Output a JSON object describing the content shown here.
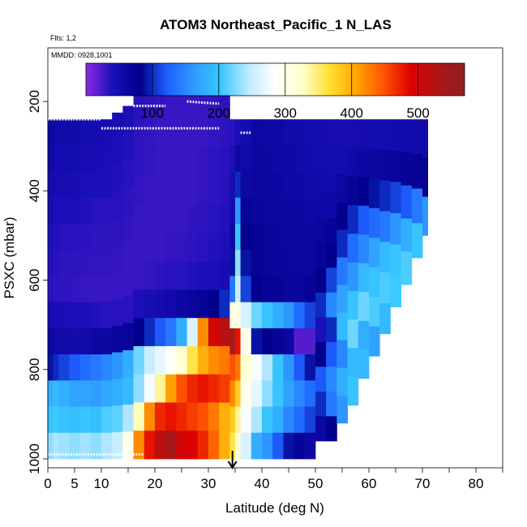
{
  "chart_data": {
    "type": "heatmap",
    "title": "ATOM3 Northeast_Pacific_1 N_LAS",
    "flights_note": "Flts: 1,2",
    "dates_note": "MMDD: 0928,1001",
    "xlabel": "Latitude (deg N)",
    "ylabel": "PSXC (mbar)",
    "x_ticks": [
      0,
      5,
      10,
      20,
      30,
      40,
      50,
      60,
      70,
      80
    ],
    "y_ticks": [
      200,
      400,
      600,
      800,
      1000
    ],
    "xlim": [
      0,
      85
    ],
    "ylim": [
      1020,
      80
    ],
    "colorbar": {
      "ticks": [
        100,
        200,
        300,
        400,
        500
      ],
      "range": [
        0,
        570
      ],
      "colors": [
        "#8a2be2",
        "#1a0fb8",
        "#00008b",
        "#1f5fff",
        "#2e9bff",
        "#38c8ff",
        "#bfeaff",
        "#ffffff",
        "#ffffcc",
        "#ffe033",
        "#ffa500",
        "#ff5500",
        "#e00000",
        "#b01515",
        "#8c2020"
      ]
    },
    "marker": {
      "latitude": 34.5,
      "label": "arrow"
    },
    "columns": [
      {
        "lat": [
          0,
          1
        ],
        "top": 240,
        "bottom": 1000,
        "v": [
          60,
          55,
          50,
          45,
          40,
          38,
          35,
          45,
          60,
          90,
          180,
          200,
          230
        ]
      },
      {
        "lat": [
          1,
          2
        ],
        "top": 240,
        "bottom": 1000,
        "v": [
          58,
          52,
          48,
          42,
          38,
          36,
          34,
          44,
          58,
          100,
          190,
          205,
          240
        ]
      },
      {
        "lat": [
          2,
          4
        ],
        "top": 240,
        "bottom": 1000,
        "v": [
          55,
          50,
          45,
          40,
          36,
          34,
          33,
          42,
          55,
          110,
          180,
          200,
          235
        ]
      },
      {
        "lat": [
          4,
          6
        ],
        "top": 240,
        "bottom": 1000,
        "v": [
          52,
          48,
          44,
          40,
          36,
          34,
          32,
          40,
          52,
          120,
          170,
          195,
          230
        ]
      },
      {
        "lat": [
          6,
          8
        ],
        "top": 240,
        "bottom": 1000,
        "v": [
          50,
          46,
          42,
          38,
          35,
          33,
          31,
          40,
          55,
          130,
          170,
          200,
          235
        ]
      },
      {
        "lat": [
          8,
          10
        ],
        "top": 240,
        "bottom": 1000,
        "v": [
          48,
          44,
          40,
          36,
          34,
          32,
          30,
          38,
          60,
          140,
          165,
          195,
          230
        ]
      },
      {
        "lat": [
          10,
          12
        ],
        "top": 240,
        "bottom": 1000,
        "v": [
          46,
          42,
          40,
          36,
          34,
          32,
          30,
          36,
          60,
          150,
          175,
          210,
          240
        ]
      },
      {
        "lat": [
          12,
          14
        ],
        "top": 225,
        "bottom": 1000,
        "v": [
          44,
          40,
          38,
          36,
          34,
          32,
          30,
          35,
          65,
          160,
          180,
          215,
          250
        ]
      },
      {
        "lat": [
          14,
          16
        ],
        "top": 210,
        "bottom": 1000,
        "v": [
          40,
          38,
          36,
          34,
          32,
          30,
          30,
          35,
          70,
          180,
          190,
          240,
          300
        ]
      },
      {
        "lat": [
          16,
          18
        ],
        "top": 180,
        "bottom": 1000,
        "v": [
          36,
          34,
          34,
          32,
          30,
          30,
          30,
          40,
          80,
          220,
          230,
          330,
          420
        ]
      },
      {
        "lat": [
          18,
          20
        ],
        "top": 180,
        "bottom": 1000,
        "v": [
          34,
          32,
          32,
          30,
          30,
          30,
          32,
          45,
          100,
          250,
          280,
          420,
          480
        ]
      },
      {
        "lat": [
          20,
          22
        ],
        "top": 180,
        "bottom": 1000,
        "v": [
          32,
          30,
          30,
          30,
          30,
          30,
          34,
          50,
          120,
          270,
          340,
          470,
          520
        ]
      },
      {
        "lat": [
          22,
          24
        ],
        "top": 180,
        "bottom": 1000,
        "v": [
          30,
          30,
          30,
          30,
          30,
          32,
          36,
          55,
          140,
          290,
          410,
          480,
          540
        ]
      },
      {
        "lat": [
          24,
          26
        ],
        "top": 180,
        "bottom": 1000,
        "v": [
          30,
          30,
          30,
          30,
          30,
          32,
          36,
          60,
          180,
          320,
          450,
          470,
          500
        ]
      },
      {
        "lat": [
          26,
          28
        ],
        "top": 180,
        "bottom": 1000,
        "v": [
          30,
          30,
          30,
          30,
          32,
          34,
          38,
          65,
          260,
          360,
          470,
          460,
          490
        ]
      },
      {
        "lat": [
          28,
          30
        ],
        "top": 180,
        "bottom": 1000,
        "v": [
          30,
          30,
          32,
          32,
          34,
          36,
          40,
          70,
          420,
          400,
          480,
          450,
          470
        ]
      },
      {
        "lat": [
          30,
          32
        ],
        "top": 180,
        "bottom": 1000,
        "v": [
          32,
          32,
          34,
          34,
          36,
          38,
          42,
          80,
          500,
          420,
          470,
          430,
          440
        ]
      },
      {
        "lat": [
          32,
          34
        ],
        "top": 180,
        "bottom": 1000,
        "v": [
          34,
          34,
          36,
          36,
          38,
          40,
          45,
          100,
          520,
          430,
          460,
          400,
          400
        ]
      },
      {
        "lat": [
          34,
          35
        ],
        "top": 240,
        "bottom": 1000,
        "v": [
          36,
          40,
          46,
          50,
          60,
          90,
          140,
          300,
          540,
          450,
          420,
          380,
          360
        ]
      },
      {
        "lat": [
          35,
          36
        ],
        "top": 240,
        "bottom": 1000,
        "v": [
          40,
          60,
          100,
          160,
          200,
          230,
          250,
          310,
          480,
          430,
          380,
          340,
          320
        ]
      },
      {
        "lat": [
          36,
          38
        ],
        "top": 240,
        "bottom": 1000,
        "v": [
          50,
          55,
          60,
          70,
          80,
          90,
          110,
          260,
          300,
          320,
          300,
          280,
          260
        ]
      },
      {
        "lat": [
          38,
          40
        ],
        "top": 240,
        "bottom": 1000,
        "v": [
          60,
          62,
          64,
          66,
          70,
          72,
          80,
          220,
          90,
          280,
          270,
          240,
          180
        ]
      },
      {
        "lat": [
          40,
          42
        ],
        "top": 240,
        "bottom": 1000,
        "v": [
          58,
          60,
          62,
          64,
          66,
          68,
          72,
          200,
          80,
          240,
          230,
          200,
          160
        ]
      },
      {
        "lat": [
          42,
          44
        ],
        "top": 240,
        "bottom": 1000,
        "v": [
          56,
          58,
          60,
          62,
          64,
          66,
          70,
          180,
          70,
          200,
          200,
          180,
          120
        ]
      },
      {
        "lat": [
          44,
          46
        ],
        "top": 240,
        "bottom": 1000,
        "v": [
          54,
          56,
          58,
          60,
          62,
          64,
          66,
          160,
          60,
          160,
          170,
          150,
          90
        ]
      },
      {
        "lat": [
          46,
          48
        ],
        "top": 240,
        "bottom": 1000,
        "v": [
          52,
          54,
          56,
          60,
          62,
          64,
          66,
          130,
          20,
          120,
          150,
          130,
          70
        ]
      },
      {
        "lat": [
          48,
          50
        ],
        "top": 240,
        "bottom": 1000,
        "v": [
          50,
          52,
          54,
          58,
          62,
          64,
          70,
          110,
          20,
          90,
          130,
          110,
          60
        ]
      },
      {
        "lat": [
          50,
          52
        ],
        "top": 240,
        "bottom": 960,
        "v": [
          48,
          50,
          52,
          56,
          64,
          70,
          80,
          100,
          40,
          80,
          120,
          100,
          60
        ]
      },
      {
        "lat": [
          52,
          54
        ],
        "top": 240,
        "bottom": 960,
        "v": [
          46,
          48,
          52,
          58,
          70,
          80,
          110,
          150,
          100,
          120,
          150,
          140,
          80
        ]
      },
      {
        "lat": [
          54,
          56
        ],
        "top": 240,
        "bottom": 920,
        "v": [
          45,
          50,
          60,
          80,
          100,
          140,
          170,
          190,
          150,
          180,
          160
        ]
      },
      {
        "lat": [
          56,
          58
        ],
        "top": 240,
        "bottom": 880,
        "v": [
          45,
          55,
          70,
          100,
          130,
          160,
          200,
          220,
          190,
          200
        ]
      },
      {
        "lat": [
          58,
          60
        ],
        "top": 240,
        "bottom": 820,
        "v": [
          50,
          60,
          80,
          120,
          150,
          190,
          220,
          180,
          190
        ]
      },
      {
        "lat": [
          60,
          62
        ],
        "top": 240,
        "bottom": 770,
        "v": [
          50,
          62,
          90,
          130,
          170,
          200,
          210,
          170
        ]
      },
      {
        "lat": [
          62,
          64
        ],
        "top": 240,
        "bottom": 720,
        "v": [
          50,
          64,
          100,
          140,
          190,
          210,
          190
        ]
      },
      {
        "lat": [
          64,
          66
        ],
        "top": 240,
        "bottom": 660,
        "v": [
          52,
          66,
          110,
          160,
          200,
          205
        ]
      },
      {
        "lat": [
          66,
          68
        ],
        "top": 240,
        "bottom": 610,
        "v": [
          52,
          70,
          120,
          180,
          210
        ]
      },
      {
        "lat": [
          68,
          70
        ],
        "top": 240,
        "bottom": 550,
        "v": [
          54,
          72,
          140,
          200
        ]
      },
      {
        "lat": [
          70,
          71
        ],
        "top": 240,
        "bottom": 500,
        "v": [
          55,
          75,
          160
        ]
      }
    ],
    "flight_tracks": [
      {
        "lat": [
          0,
          10
        ],
        "pressure": [
          240,
          240
        ]
      },
      {
        "lat": [
          10,
          32
        ],
        "pressure": [
          260,
          260
        ]
      },
      {
        "lat": [
          16,
          22
        ],
        "pressure": [
          210,
          210
        ]
      },
      {
        "lat": [
          26,
          32
        ],
        "pressure": [
          200,
          205
        ]
      },
      {
        "lat": [
          36,
          38
        ],
        "pressure": [
          270,
          270
        ]
      },
      {
        "lat": [
          57,
          70
        ],
        "pressure": [
          230,
          230
        ]
      },
      {
        "lat": [
          0,
          18
        ],
        "pressure": [
          990,
          990
        ]
      }
    ]
  }
}
